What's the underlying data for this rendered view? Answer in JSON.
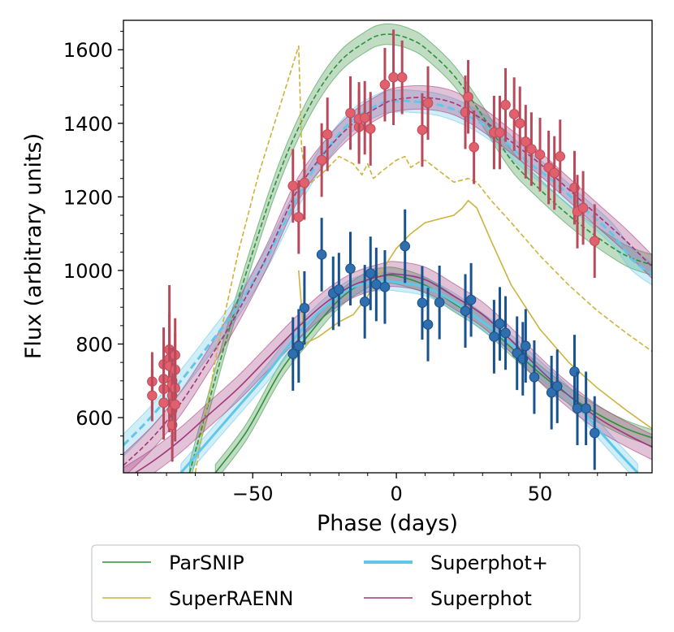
{
  "chart_data": {
    "type": "line",
    "xlabel": "Phase (days)",
    "ylabel": "Flux (arbitrary units)",
    "xlim": [
      -95,
      89
    ],
    "ylim": [
      450,
      1680
    ],
    "xticks": [
      -50,
      0,
      50
    ],
    "xtick_labels": [
      "−50",
      "0",
      "50"
    ],
    "yticks": [
      600,
      800,
      1000,
      1200,
      1400,
      1600
    ],
    "ytick_labels": [
      "600",
      "800",
      "1000",
      "1200",
      "1400",
      "1600"
    ],
    "colors": {
      "parsnip": "#2f8f3a",
      "superraenn": "#cdb33e",
      "superphot_plus": "#62c6e8",
      "superphot": "#a0357a",
      "red_points": "#e0606e",
      "red_err": "#b84a5c",
      "blue_points": "#2f6fb0",
      "blue_err": "#18528f"
    },
    "legend": {
      "position": "below",
      "entries": [
        {
          "label": "ParSNIP",
          "color": "#2f8f3a"
        },
        {
          "label": "SuperRAENN",
          "color": "#cdb33e"
        },
        {
          "label": "Superphot+",
          "color": "#62c6e8"
        },
        {
          "label": "Superphot",
          "color": "#a0357a"
        }
      ]
    },
    "observations": [
      {
        "band": "red",
        "points": [
          {
            "x": -85,
            "y": 698,
            "err": 80
          },
          {
            "x": -85,
            "y": 660,
            "err": 70
          },
          {
            "x": -81,
            "y": 745,
            "err": 100
          },
          {
            "x": -81,
            "y": 705,
            "err": 100
          },
          {
            "x": -81,
            "y": 678,
            "err": 100
          },
          {
            "x": -81,
            "y": 640,
            "err": 100
          },
          {
            "x": -79,
            "y": 785,
            "err": 100
          },
          {
            "x": -79,
            "y": 760,
            "err": 200
          },
          {
            "x": -79,
            "y": 740,
            "err": 100
          },
          {
            "x": -78,
            "y": 700,
            "err": 90
          },
          {
            "x": -78,
            "y": 690,
            "err": 100
          },
          {
            "x": -78,
            "y": 660,
            "err": 100
          },
          {
            "x": -78,
            "y": 620,
            "err": 100
          },
          {
            "x": -78,
            "y": 580,
            "err": 100
          },
          {
            "x": -77,
            "y": 770,
            "err": 100
          },
          {
            "x": -77,
            "y": 730,
            "err": 100
          },
          {
            "x": -77,
            "y": 680,
            "err": 100
          },
          {
            "x": -77,
            "y": 635,
            "err": 100
          },
          {
            "x": -36,
            "y": 1230,
            "err": 100
          },
          {
            "x": -34,
            "y": 1145,
            "err": 100
          },
          {
            "x": -32,
            "y": 1238,
            "err": 100
          },
          {
            "x": -26,
            "y": 1300,
            "err": 100
          },
          {
            "x": -24,
            "y": 1370,
            "err": 100
          },
          {
            "x": -16,
            "y": 1428,
            "err": 100
          },
          {
            "x": -13,
            "y": 1390,
            "err": 100
          },
          {
            "x": -13,
            "y": 1412,
            "err": 100
          },
          {
            "x": -11,
            "y": 1415,
            "err": 100
          },
          {
            "x": -9,
            "y": 1385,
            "err": 100
          },
          {
            "x": -4,
            "y": 1505,
            "err": 100
          },
          {
            "x": -1,
            "y": 1525,
            "err": 130
          },
          {
            "x": 2,
            "y": 1525,
            "err": 100
          },
          {
            "x": 9,
            "y": 1382,
            "err": 100
          },
          {
            "x": 11,
            "y": 1455,
            "err": 100
          },
          {
            "x": 24,
            "y": 1430,
            "err": 100
          },
          {
            "x": 25,
            "y": 1472,
            "err": 100
          },
          {
            "x": 27,
            "y": 1335,
            "err": 100
          },
          {
            "x": 34,
            "y": 1375,
            "err": 100
          },
          {
            "x": 36,
            "y": 1375,
            "err": 100
          },
          {
            "x": 38,
            "y": 1450,
            "err": 100
          },
          {
            "x": 41,
            "y": 1425,
            "err": 100
          },
          {
            "x": 43,
            "y": 1400,
            "err": 100
          },
          {
            "x": 45,
            "y": 1350,
            "err": 100
          },
          {
            "x": 47,
            "y": 1330,
            "err": 100
          },
          {
            "x": 50,
            "y": 1315,
            "err": 100
          },
          {
            "x": 53,
            "y": 1280,
            "err": 100
          },
          {
            "x": 55,
            "y": 1265,
            "err": 100
          },
          {
            "x": 57,
            "y": 1310,
            "err": 100
          },
          {
            "x": 62,
            "y": 1225,
            "err": 100
          },
          {
            "x": 63,
            "y": 1160,
            "err": 100
          },
          {
            "x": 65,
            "y": 1170,
            "err": 100
          },
          {
            "x": 69,
            "y": 1080,
            "err": 100
          }
        ]
      },
      {
        "band": "blue",
        "points": [
          {
            "x": -36,
            "y": 773,
            "err": 100
          },
          {
            "x": -34,
            "y": 795,
            "err": 100
          },
          {
            "x": -32,
            "y": 898,
            "err": 100
          },
          {
            "x": -26,
            "y": 1043,
            "err": 100
          },
          {
            "x": -22,
            "y": 938,
            "err": 100
          },
          {
            "x": -20,
            "y": 948,
            "err": 100
          },
          {
            "x": -16,
            "y": 1005,
            "err": 100
          },
          {
            "x": -11,
            "y": 915,
            "err": 100
          },
          {
            "x": -9,
            "y": 992,
            "err": 100
          },
          {
            "x": -7,
            "y": 962,
            "err": 100
          },
          {
            "x": -4,
            "y": 955,
            "err": 100
          },
          {
            "x": 3,
            "y": 1066,
            "err": 100
          },
          {
            "x": 9,
            "y": 912,
            "err": 100
          },
          {
            "x": 11,
            "y": 853,
            "err": 100
          },
          {
            "x": 15,
            "y": 913,
            "err": 100
          },
          {
            "x": 24,
            "y": 890,
            "err": 100
          },
          {
            "x": 26,
            "y": 920,
            "err": 100
          },
          {
            "x": 34,
            "y": 820,
            "err": 100
          },
          {
            "x": 36,
            "y": 855,
            "err": 100
          },
          {
            "x": 38,
            "y": 830,
            "err": 100
          },
          {
            "x": 42,
            "y": 775,
            "err": 100
          },
          {
            "x": 44,
            "y": 760,
            "err": 100
          },
          {
            "x": 45,
            "y": 795,
            "err": 100
          },
          {
            "x": 48,
            "y": 710,
            "err": 100
          },
          {
            "x": 54,
            "y": 668,
            "err": 100
          },
          {
            "x": 56,
            "y": 685,
            "err": 100
          },
          {
            "x": 62,
            "y": 725,
            "err": 100
          },
          {
            "x": 63,
            "y": 625,
            "err": 100
          },
          {
            "x": 66,
            "y": 625,
            "err": 100
          },
          {
            "x": 69,
            "y": 558,
            "err": 100
          }
        ]
      }
    ],
    "models": [
      {
        "name": "ParSNIP",
        "band": "red",
        "style": "dashed",
        "color": "#2f8f3a",
        "points": [
          [
            -72,
            450
          ],
          [
            -60,
            790
          ],
          [
            -50,
            1050
          ],
          [
            -40,
            1280
          ],
          [
            -30,
            1450
          ],
          [
            -20,
            1565
          ],
          [
            -10,
            1625
          ],
          [
            -5,
            1641
          ],
          [
            0,
            1640
          ],
          [
            5,
            1628
          ],
          [
            10,
            1605
          ],
          [
            20,
            1530
          ],
          [
            30,
            1420
          ],
          [
            40,
            1300
          ],
          [
            50,
            1220
          ],
          [
            60,
            1150
          ],
          [
            70,
            1090
          ],
          [
            80,
            1040
          ],
          [
            89,
            1015
          ]
        ],
        "band_width": 28
      },
      {
        "name": "ParSNIP",
        "band": "blue",
        "style": "solid",
        "color": "#2f8f3a",
        "points": [
          [
            -63,
            450
          ],
          [
            -55,
            530
          ],
          [
            -50,
            590
          ],
          [
            -40,
            730
          ],
          [
            -30,
            830
          ],
          [
            -20,
            920
          ],
          [
            -10,
            975
          ],
          [
            -5,
            985
          ],
          [
            0,
            985
          ],
          [
            10,
            960
          ],
          [
            20,
            910
          ],
          [
            30,
            860
          ],
          [
            40,
            790
          ],
          [
            50,
            720
          ],
          [
            60,
            660
          ],
          [
            70,
            610
          ],
          [
            80,
            570
          ],
          [
            89,
            545
          ]
        ],
        "band_width": 22
      },
      {
        "name": "SuperRAENN",
        "band": "red",
        "style": "dashed",
        "color": "#cdb33e",
        "points": [
          [
            -70,
            450
          ],
          [
            -62,
            800
          ],
          [
            -55,
            1050
          ],
          [
            -48,
            1260
          ],
          [
            -40,
            1460
          ],
          [
            -34,
            1610
          ],
          [
            -33,
            1330
          ],
          [
            -31,
            1230
          ],
          [
            -25,
            1270
          ],
          [
            -20,
            1310
          ],
          [
            -15,
            1290
          ],
          [
            -12,
            1260
          ],
          [
            -10,
            1290
          ],
          [
            -8,
            1250
          ],
          [
            -5,
            1270
          ],
          [
            0,
            1300
          ],
          [
            3,
            1310
          ],
          [
            5,
            1280
          ],
          [
            8,
            1295
          ],
          [
            10,
            1300
          ],
          [
            15,
            1270
          ],
          [
            20,
            1240
          ],
          [
            25,
            1250
          ],
          [
            28,
            1240
          ],
          [
            33,
            1190
          ],
          [
            40,
            1130
          ],
          [
            50,
            1040
          ],
          [
            60,
            960
          ],
          [
            70,
            890
          ],
          [
            80,
            830
          ],
          [
            89,
            780
          ]
        ]
      },
      {
        "name": "SuperRAENN",
        "band": "blue",
        "style": "solid",
        "color": "#cdb33e",
        "points": [
          [
            -34,
            1000
          ],
          [
            -32,
            800
          ],
          [
            -27,
            820
          ],
          [
            -20,
            860
          ],
          [
            -15,
            880
          ],
          [
            -10,
            930
          ],
          [
            -5,
            1000
          ],
          [
            0,
            1060
          ],
          [
            5,
            1100
          ],
          [
            10,
            1130
          ],
          [
            15,
            1140
          ],
          [
            20,
            1150
          ],
          [
            23,
            1170
          ],
          [
            25,
            1190
          ],
          [
            28,
            1170
          ],
          [
            33,
            1080
          ],
          [
            40,
            960
          ],
          [
            50,
            840
          ],
          [
            60,
            750
          ],
          [
            70,
            680
          ],
          [
            80,
            620
          ],
          [
            89,
            570
          ]
        ]
      },
      {
        "name": "Superphot+",
        "band": "red",
        "style": "dashed",
        "color": "#62c6e8",
        "points": [
          [
            -95,
            525
          ],
          [
            -85,
            605
          ],
          [
            -75,
            700
          ],
          [
            -65,
            800
          ],
          [
            -55,
            905
          ],
          [
            -45,
            1035
          ],
          [
            -35,
            1190
          ],
          [
            -25,
            1320
          ],
          [
            -15,
            1410
          ],
          [
            -5,
            1455
          ],
          [
            0,
            1460
          ],
          [
            5,
            1460
          ],
          [
            15,
            1450
          ],
          [
            25,
            1420
          ],
          [
            35,
            1370
          ],
          [
            45,
            1300
          ],
          [
            55,
            1240
          ],
          [
            65,
            1170
          ],
          [
            75,
            1100
          ],
          [
            82,
            1030
          ],
          [
            89,
            990
          ]
        ],
        "band_width": 30
      },
      {
        "name": "Superphot+",
        "band": "blue",
        "style": "solid",
        "color": "#62c6e8",
        "points": [
          [
            -75,
            450
          ],
          [
            -65,
            540
          ],
          [
            -55,
            630
          ],
          [
            -45,
            720
          ],
          [
            -35,
            820
          ],
          [
            -25,
            900
          ],
          [
            -15,
            955
          ],
          [
            -5,
            970
          ],
          [
            0,
            968
          ],
          [
            10,
            955
          ],
          [
            20,
            915
          ],
          [
            30,
            860
          ],
          [
            40,
            800
          ],
          [
            50,
            730
          ],
          [
            60,
            660
          ],
          [
            70,
            570
          ],
          [
            78,
            500
          ],
          [
            84,
            450
          ]
        ],
        "band_width": 24
      },
      {
        "name": "Superphot",
        "band": "red",
        "style": "dashed",
        "color": "#a0357a",
        "points": [
          [
            -95,
            470
          ],
          [
            -85,
            545
          ],
          [
            -75,
            640
          ],
          [
            -65,
            760
          ],
          [
            -55,
            890
          ],
          [
            -45,
            1040
          ],
          [
            -35,
            1210
          ],
          [
            -25,
            1320
          ],
          [
            -15,
            1400
          ],
          [
            -5,
            1450
          ],
          [
            0,
            1465
          ],
          [
            10,
            1470
          ],
          [
            20,
            1455
          ],
          [
            30,
            1410
          ],
          [
            40,
            1350
          ],
          [
            50,
            1290
          ],
          [
            60,
            1220
          ],
          [
            70,
            1150
          ],
          [
            80,
            1080
          ],
          [
            89,
            1010
          ]
        ],
        "band_width": 32
      },
      {
        "name": "Superphot",
        "band": "blue",
        "style": "solid",
        "color": "#a0357a",
        "points": [
          [
            -95,
            430
          ],
          [
            -85,
            480
          ],
          [
            -75,
            540
          ],
          [
            -65,
            610
          ],
          [
            -55,
            680
          ],
          [
            -45,
            760
          ],
          [
            -35,
            840
          ],
          [
            -25,
            910
          ],
          [
            -15,
            960
          ],
          [
            -5,
            985
          ],
          [
            0,
            990
          ],
          [
            10,
            975
          ],
          [
            20,
            930
          ],
          [
            30,
            880
          ],
          [
            40,
            810
          ],
          [
            50,
            730
          ],
          [
            60,
            660
          ],
          [
            70,
            600
          ],
          [
            80,
            555
          ],
          [
            89,
            520
          ]
        ],
        "band_width": 34
      }
    ]
  }
}
